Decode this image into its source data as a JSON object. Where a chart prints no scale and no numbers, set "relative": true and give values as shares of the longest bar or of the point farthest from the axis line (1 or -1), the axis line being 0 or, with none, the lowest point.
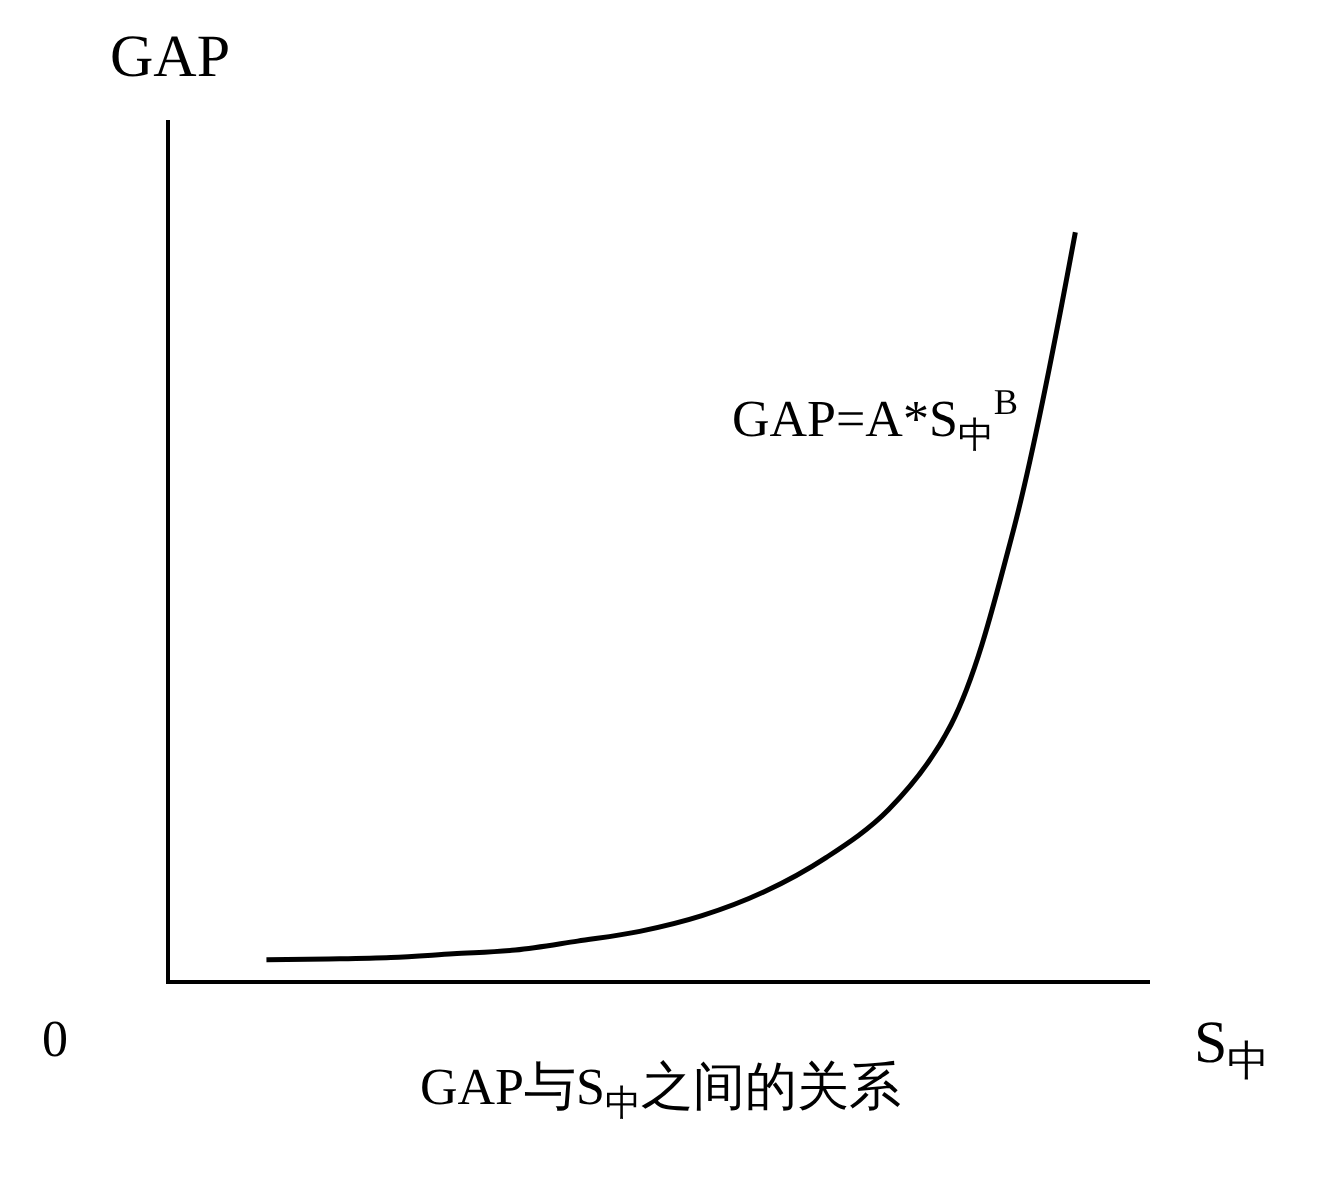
{
  "chart_data": {
    "type": "line",
    "relative": true,
    "title": "GAP与S$_{中}$之间的关系",
    "xlabel": "S$_{中}$",
    "ylabel": "GAP",
    "annotations": [
      "0",
      "GAP=A*S$_{中}$$^{B}$"
    ],
    "categories": [
      null,
      null,
      null,
      null,
      null,
      null,
      null,
      null,
      null,
      null,
      null,
      null,
      null,
      null
    ],
    "series": [
      {
        "color": "#000000",
        "values": [
          0.027,
          0.028,
          0.03,
          0.035,
          0.04,
          0.052,
          0.065,
          0.086,
          0.118,
          0.164,
          0.228,
          0.341,
          0.6,
          1.0
        ]
      }
    ],
    "marker": "none",
    "line_style": "solid"
  }
}
